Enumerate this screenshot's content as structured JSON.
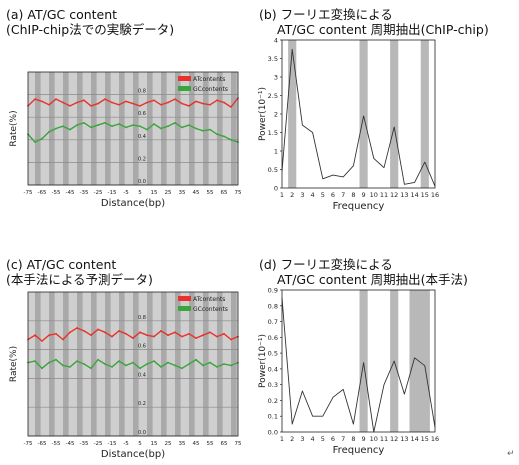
{
  "panels": {
    "a": {
      "title_line1": "(a) AT/GC content",
      "title_line2": "(ChIP-chip法での実験データ)",
      "ylabel": "Rate(%)",
      "xlabel": "Distance(bp)",
      "legend": [
        "ATcontents",
        "GCcontents"
      ]
    },
    "b": {
      "title_line1": "(b) フーリエ変換による",
      "title_line2": "AT/GC content 周期抽出(ChIP-chip)",
      "ylabel": "Power(10⁻¹)",
      "xlabel": "Frequency"
    },
    "c": {
      "title_line1": "(c) AT/GC content",
      "title_line2": "(本手法による予測データ)",
      "ylabel": "Rate(%)",
      "xlabel": "Distance(bp)",
      "legend": [
        "ATcontents",
        "GCcontents"
      ]
    },
    "d": {
      "title_line1": "(d) フーリエ変換による",
      "title_line2": "AT/GC content 周期抽出(本手法)",
      "ylabel": "Power(10⁻¹)",
      "xlabel": "Frequency"
    }
  },
  "corner_mark": "↵",
  "chart_data": [
    {
      "id": "a",
      "type": "line",
      "title": "(a) AT/GC content (ChIP-chip法での実験データ)",
      "xlabel": "Distance(bp)",
      "ylabel": "Rate(%)",
      "xlim": [
        -75,
        75
      ],
      "ylim": [
        0.0,
        1.0
      ],
      "x_ticks": [
        -75,
        -65,
        -55,
        -45,
        -35,
        -25,
        -15,
        -5,
        5,
        15,
        25,
        35,
        45,
        55,
        65,
        75
      ],
      "y_ticks": [
        0.0,
        0.2,
        0.4,
        0.6,
        0.8
      ],
      "shaded_bands_x": [
        [
          -70,
          -66
        ],
        [
          -60,
          -56
        ],
        [
          -50,
          -46
        ],
        [
          -40,
          -36
        ],
        [
          -30,
          -26
        ],
        [
          -20,
          -16
        ],
        [
          -10,
          -6
        ],
        [
          0,
          4
        ],
        [
          10,
          14
        ],
        [
          20,
          24
        ],
        [
          30,
          34
        ],
        [
          40,
          44
        ],
        [
          50,
          54
        ],
        [
          60,
          64
        ],
        [
          70,
          74
        ]
      ],
      "legend_position": "top-right",
      "grid": true,
      "series": [
        {
          "name": "ATcontents",
          "color": "#e8322b",
          "x": [
            -75,
            -70,
            -65,
            -60,
            -55,
            -50,
            -45,
            -40,
            -35,
            -30,
            -25,
            -20,
            -15,
            -10,
            -5,
            0,
            5,
            10,
            15,
            20,
            25,
            30,
            35,
            40,
            45,
            50,
            55,
            60,
            65,
            70,
            75
          ],
          "y": [
            0.7,
            0.76,
            0.74,
            0.71,
            0.76,
            0.73,
            0.7,
            0.73,
            0.75,
            0.7,
            0.72,
            0.76,
            0.73,
            0.71,
            0.74,
            0.72,
            0.7,
            0.73,
            0.75,
            0.71,
            0.73,
            0.76,
            0.72,
            0.7,
            0.74,
            0.72,
            0.71,
            0.75,
            0.73,
            0.69,
            0.77
          ]
        },
        {
          "name": "GCcontents",
          "color": "#3aa53a",
          "x": [
            -75,
            -70,
            -65,
            -60,
            -55,
            -50,
            -45,
            -40,
            -35,
            -30,
            -25,
            -20,
            -15,
            -10,
            -5,
            0,
            5,
            10,
            15,
            20,
            25,
            30,
            35,
            40,
            45,
            50,
            55,
            60,
            65,
            70,
            75
          ],
          "y": [
            0.45,
            0.38,
            0.41,
            0.47,
            0.5,
            0.52,
            0.49,
            0.53,
            0.55,
            0.51,
            0.53,
            0.55,
            0.52,
            0.54,
            0.51,
            0.53,
            0.52,
            0.49,
            0.54,
            0.5,
            0.52,
            0.55,
            0.51,
            0.53,
            0.5,
            0.48,
            0.49,
            0.45,
            0.43,
            0.4,
            0.38
          ]
        }
      ]
    },
    {
      "id": "b",
      "type": "line",
      "title": "(b) フーリエ変換による AT/GC content 周期抽出(ChIP-chip)",
      "xlabel": "Frequency",
      "ylabel": "Power(10⁻¹)",
      "xlim": [
        1,
        16
      ],
      "ylim": [
        0,
        4
      ],
      "x_ticks": [
        1,
        2,
        3,
        4,
        5,
        6,
        7,
        8,
        9,
        10,
        11,
        12,
        13,
        14,
        15,
        16
      ],
      "y_ticks": [
        0,
        0.5,
        1,
        1.5,
        2,
        2.5,
        3,
        3.5,
        4
      ],
      "shaded_bands_x": [
        [
          1.6,
          2.4
        ],
        [
          8.6,
          9.4
        ],
        [
          11.6,
          12.4
        ],
        [
          14.6,
          15.4
        ]
      ],
      "grid": false,
      "series": [
        {
          "color": "#333333",
          "x": [
            1,
            2,
            3,
            4,
            5,
            6,
            7,
            8,
            9,
            10,
            11,
            12,
            13,
            14,
            15,
            16
          ],
          "y": [
            0.45,
            3.75,
            1.7,
            1.5,
            0.25,
            0.35,
            0.3,
            0.6,
            1.95,
            0.8,
            0.55,
            1.65,
            0.1,
            0.15,
            0.7,
            0.05
          ]
        }
      ]
    },
    {
      "id": "c",
      "type": "line",
      "title": "(c) AT/GC content (本手法による予測データ)",
      "xlabel": "Distance(bp)",
      "ylabel": "Rate(%)",
      "xlim": [
        -75,
        75
      ],
      "ylim": [
        0.0,
        1.0
      ],
      "x_ticks": [
        -75,
        -65,
        -55,
        -45,
        -35,
        -25,
        -15,
        -5,
        5,
        15,
        25,
        35,
        45,
        55,
        65,
        75
      ],
      "y_ticks": [
        0.0,
        0.2,
        0.4,
        0.6,
        0.8
      ],
      "shaded_bands_x": [
        [
          -70,
          -66
        ],
        [
          -60,
          -56
        ],
        [
          -50,
          -46
        ],
        [
          -40,
          -36
        ],
        [
          -30,
          -26
        ],
        [
          -20,
          -16
        ],
        [
          -10,
          -6
        ],
        [
          0,
          4
        ],
        [
          10,
          14
        ],
        [
          20,
          24
        ],
        [
          30,
          34
        ],
        [
          40,
          44
        ],
        [
          50,
          54
        ],
        [
          60,
          64
        ],
        [
          70,
          74
        ]
      ],
      "legend_position": "top-right",
      "grid": true,
      "series": [
        {
          "name": "ATcontents",
          "color": "#e8322b",
          "x": [
            -75,
            -70,
            -65,
            -60,
            -55,
            -50,
            -45,
            -40,
            -35,
            -30,
            -25,
            -20,
            -15,
            -10,
            -5,
            0,
            5,
            10,
            15,
            20,
            25,
            30,
            35,
            40,
            45,
            50,
            55,
            60,
            65,
            70,
            75
          ],
          "y": [
            0.67,
            0.7,
            0.66,
            0.7,
            0.71,
            0.67,
            0.72,
            0.75,
            0.73,
            0.7,
            0.74,
            0.72,
            0.69,
            0.73,
            0.71,
            0.68,
            0.72,
            0.7,
            0.69,
            0.73,
            0.7,
            0.72,
            0.69,
            0.71,
            0.68,
            0.7,
            0.72,
            0.69,
            0.71,
            0.67,
            0.69
          ]
        },
        {
          "name": "GCcontents",
          "color": "#3aa53a",
          "x": [
            -75,
            -70,
            -65,
            -60,
            -55,
            -50,
            -45,
            -40,
            -35,
            -30,
            -25,
            -20,
            -15,
            -10,
            -5,
            0,
            5,
            10,
            15,
            20,
            25,
            30,
            35,
            40,
            45,
            50,
            55,
            60,
            65,
            70,
            75
          ],
          "y": [
            0.51,
            0.52,
            0.47,
            0.51,
            0.53,
            0.49,
            0.48,
            0.52,
            0.5,
            0.47,
            0.53,
            0.5,
            0.48,
            0.52,
            0.49,
            0.51,
            0.47,
            0.5,
            0.52,
            0.48,
            0.51,
            0.49,
            0.47,
            0.5,
            0.53,
            0.49,
            0.51,
            0.48,
            0.5,
            0.49,
            0.51
          ]
        }
      ]
    },
    {
      "id": "d",
      "type": "line",
      "title": "(d) フーリエ変換による AT/GC content 周期抽出(本手法)",
      "xlabel": "Frequency",
      "ylabel": "Power(10⁻¹)",
      "xlim": [
        1,
        16
      ],
      "ylim": [
        0,
        0.9
      ],
      "x_ticks": [
        1,
        2,
        3,
        4,
        5,
        6,
        7,
        8,
        9,
        10,
        11,
        12,
        13,
        14,
        15,
        16
      ],
      "y_ticks": [
        0,
        0.1,
        0.2,
        0.3,
        0.4,
        0.5,
        0.6,
        0.7,
        0.8,
        0.9
      ],
      "shaded_bands_x": [
        [
          8.6,
          9.4
        ],
        [
          11.6,
          12.4
        ],
        [
          13.5,
          15.5
        ]
      ],
      "grid": false,
      "series": [
        {
          "color": "#333333",
          "x": [
            1,
            2,
            3,
            4,
            5,
            6,
            7,
            8,
            9,
            10,
            11,
            12,
            13,
            14,
            15,
            16
          ],
          "y": [
            0.85,
            0.05,
            0.26,
            0.1,
            0.1,
            0.22,
            0.27,
            0.05,
            0.44,
            0.0,
            0.3,
            0.45,
            0.24,
            0.47,
            0.42,
            0.03
          ]
        }
      ]
    }
  ]
}
